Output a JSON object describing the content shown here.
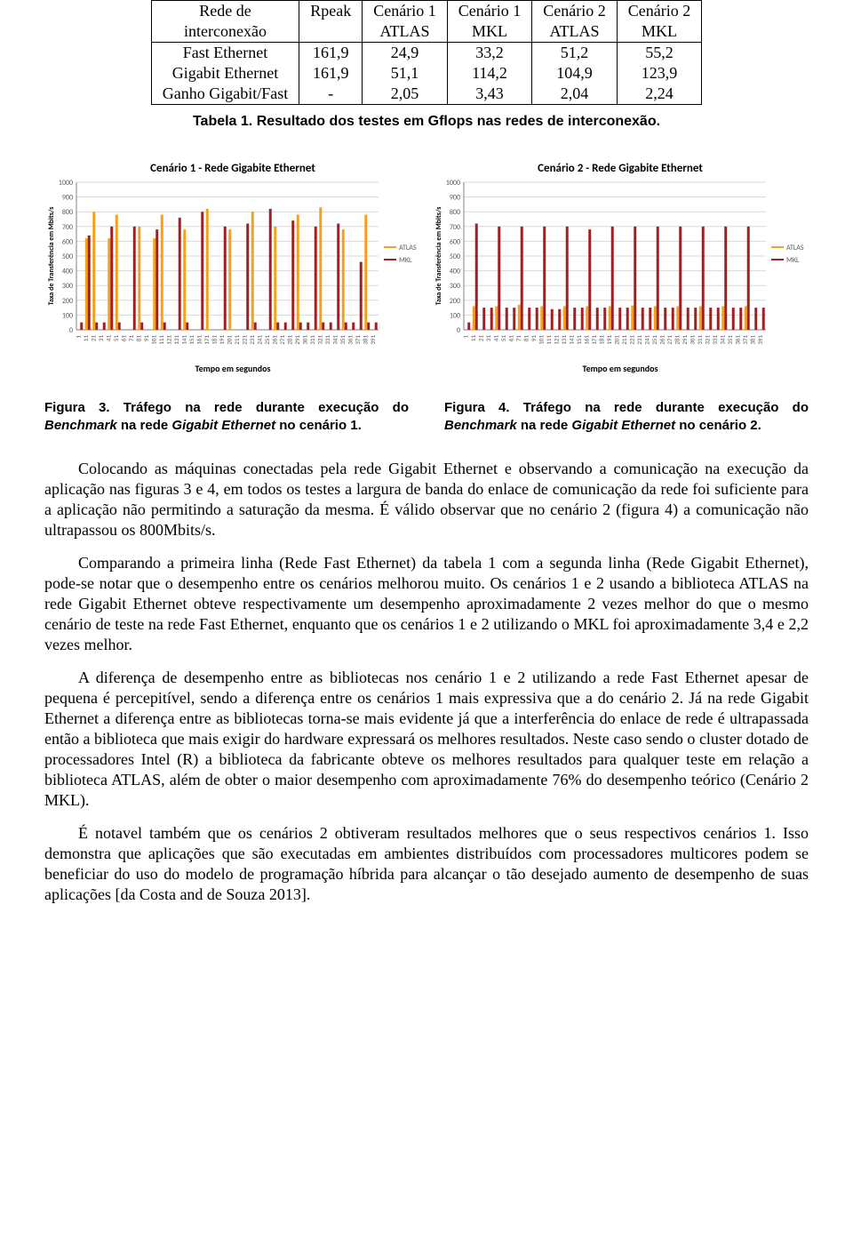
{
  "table": {
    "headers_row1": [
      "Rede de",
      "Rpeak",
      "Cenário 1",
      "Cenário 1",
      "Cenário 2",
      "Cenário 2"
    ],
    "headers_row2": [
      "interconexão",
      "",
      "ATLAS",
      "MKL",
      "ATLAS",
      "MKL"
    ],
    "rows": [
      [
        "Fast Ethernet",
        "161,9",
        "24,9",
        "33,2",
        "51,2",
        "55,2"
      ],
      [
        "Gigabit Ethernet",
        "161,9",
        "51,1",
        "114,2",
        "104,9",
        "123,9"
      ],
      [
        "Ganho Gigabit/Fast",
        "-",
        "2,05",
        "3,43",
        "2,04",
        "2,24"
      ]
    ],
    "caption": "Tabela 1. Resultado dos testes em Gflops nas redes de interconexão."
  },
  "charts": {
    "ylabel": "Taxa de Transferência em Mbits/s",
    "xlabel": "Tempo em segundos",
    "legend": [
      "ATLAS",
      "MKL"
    ],
    "colors": {
      "atlas": "#f7a11a",
      "mkl": "#a31e23",
      "grid": "#d9d9d9",
      "axis": "#808080",
      "text": "#595959"
    },
    "ylim": [
      0,
      1000
    ],
    "ytick_step": 100,
    "xlim": [
      1,
      400
    ],
    "xtick_step": 10,
    "chart1": {
      "title": "Cenário 1 - Rede Gigabite Ethernet",
      "atlas": [
        0,
        620,
        800,
        0,
        620,
        780,
        0,
        0,
        700,
        0,
        620,
        780,
        0,
        0,
        680,
        0,
        0,
        820,
        0,
        0,
        680,
        0,
        0,
        800,
        0,
        0,
        700,
        0,
        0,
        780,
        0,
        0,
        830,
        0,
        0,
        680,
        0,
        0,
        780,
        0
      ],
      "mkl": [
        50,
        640,
        50,
        50,
        700,
        50,
        0,
        700,
        50,
        0,
        680,
        50,
        0,
        760,
        50,
        0,
        800,
        0,
        0,
        700,
        0,
        0,
        720,
        50,
        0,
        820,
        50,
        50,
        740,
        50,
        50,
        700,
        50,
        50,
        720,
        50,
        50,
        460,
        50,
        50
      ]
    },
    "chart2": {
      "title": "Cenário 2 - Rede Gigabite Ethernet",
      "atlas": [
        0,
        160,
        0,
        0,
        160,
        0,
        0,
        170,
        0,
        0,
        160,
        0,
        0,
        160,
        0,
        0,
        160,
        0,
        0,
        160,
        0,
        0,
        165,
        0,
        0,
        160,
        0,
        0,
        160,
        0,
        0,
        160,
        0,
        0,
        160,
        0,
        0,
        160,
        0,
        0
      ],
      "mkl": [
        50,
        720,
        150,
        150,
        700,
        150,
        150,
        700,
        150,
        150,
        700,
        140,
        140,
        700,
        150,
        150,
        680,
        150,
        150,
        700,
        150,
        150,
        700,
        150,
        150,
        700,
        150,
        150,
        700,
        150,
        150,
        700,
        150,
        150,
        700,
        150,
        150,
        700,
        150,
        150
      ]
    }
  },
  "fig3_caption_a": "Figura 3. Tráfego na rede durante execução do ",
  "fig3_caption_b": "Benchmark",
  "fig3_caption_c": " na rede ",
  "fig3_caption_d": "Gigabit Ethernet",
  "fig3_caption_e": " no cenário 1.",
  "fig4_caption_a": "Figura 4. Tráfego na rede durante execução do ",
  "fig4_caption_b": "Benchmark",
  "fig4_caption_c": " na rede ",
  "fig4_caption_d": "Gigabit Ethernet",
  "fig4_caption_e": " no cenário 2.",
  "para1": "Colocando as máquinas conectadas pela rede Gigabit Ethernet e observando a comunicação na execução da aplicação nas figuras 3 e 4, em todos os testes a largura de banda do enlace de comunicação da rede foi suficiente para a aplicação não permitindo a saturação da mesma. É válido observar que no cenário 2 (figura 4) a comunicação não ultrapassou os 800Mbits/s.",
  "para2": "Comparando a primeira linha (Rede Fast Ethernet) da tabela 1 com a segunda linha (Rede Gigabit Ethernet), pode-se notar que o desempenho entre os cenários melhorou muito. Os cenários 1 e 2 usando a biblioteca ATLAS na rede Gigabit Ethernet obteve respectivamente um desempenho aproximadamente 2 vezes melhor do que o mesmo cenário de teste na rede Fast Ethernet, enquanto que os cenários 1 e 2 utilizando o MKL foi aproximadamente 3,4 e 2,2 vezes melhor.",
  "para3": "A diferença de desempenho entre as bibliotecas nos cenário 1 e 2 utilizando a rede Fast Ethernet apesar de pequena é percepitível, sendo a diferença entre os cenários 1 mais expressiva que a do cenário 2. Já na rede Gigabit Ethernet a diferença entre as bibliotecas torna-se mais evidente já que a interferência do enlace de rede é ultrapassada então a biblioteca que mais exigir do hardware expressará os melhores resultados. Neste caso sendo o cluster dotado de processadores Intel (R) a biblioteca da fabricante obteve os melhores resultados para qualquer teste em relação a biblioteca ATLAS, além de obter o maior desempenho com aproximadamente 76% do desempenho teórico (Cenário 2 MKL).",
  "para4": "É notavel também que os cenários 2 obtiveram resultados melhores que o seus respectivos cenários 1. Isso demonstra que aplicações que são executadas em ambientes distribuídos com processadores multicores podem se beneficiar do uso do modelo de programação híbrida para alcançar o tão desejado aumento de desempenho de suas aplicações [da Costa and de Souza 2013]."
}
